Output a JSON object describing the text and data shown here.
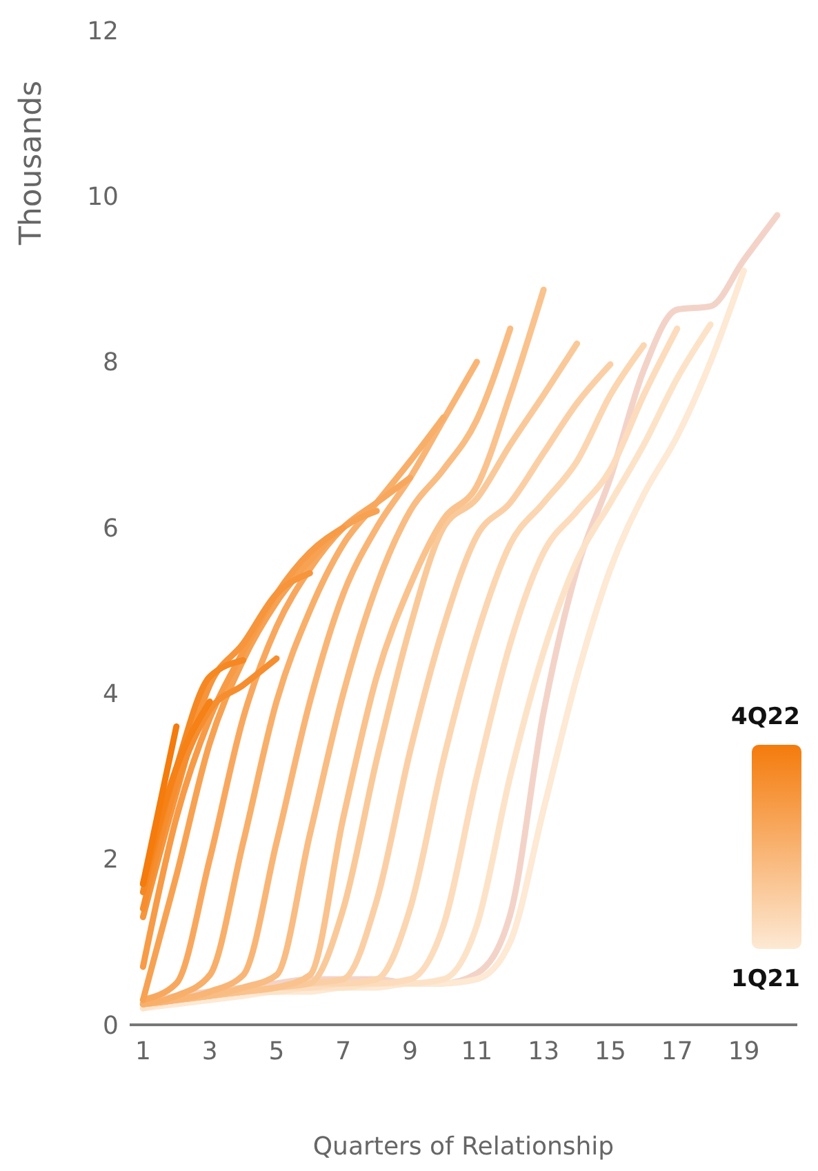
{
  "chart_data": {
    "type": "line",
    "xlabel": "Quarters of Relationship",
    "ylabel": "Thousands",
    "x": [
      1,
      2,
      3,
      4,
      5,
      6,
      7,
      8,
      9,
      10,
      11,
      12,
      13,
      14,
      15,
      16,
      17,
      18,
      19,
      20
    ],
    "xlim": [
      0.6,
      20.6
    ],
    "xticks": [
      1,
      3,
      5,
      7,
      9,
      11,
      13,
      15,
      17,
      19
    ],
    "ylim": [
      0,
      12
    ],
    "yticks": [
      0,
      2,
      4,
      6,
      8,
      10,
      12
    ],
    "grid": false,
    "line_style": "solid",
    "annotations": [
      "4Q22",
      "1Q21"
    ],
    "series": [
      {
        "color": "#f3d3c8",
        "values": [
          0.25,
          0.35,
          0.4,
          0.45,
          0.5,
          0.55,
          0.55,
          0.55,
          0.5,
          0.5,
          0.62,
          1.33,
          3.77,
          5.5,
          6.6,
          7.9,
          8.63,
          8.67,
          9.23,
          9.77
        ]
      },
      {
        "color": "#fde9d4",
        "values": [
          0.2,
          0.25,
          0.3,
          0.35,
          0.4,
          0.4,
          0.45,
          0.45,
          0.5,
          0.5,
          0.55,
          1.0,
          2.6,
          4.2,
          5.5,
          6.4,
          7.1,
          8.0,
          9.1,
          null
        ]
      },
      {
        "color": "#fce3c8",
        "values": [
          0.2,
          0.3,
          0.35,
          0.4,
          0.4,
          0.45,
          0.45,
          0.5,
          0.5,
          0.55,
          1.2,
          3.0,
          4.5,
          5.6,
          6.3,
          7.0,
          7.8,
          8.45,
          null,
          null
        ]
      },
      {
        "color": "#fcdcbc",
        "values": [
          0.25,
          0.3,
          0.35,
          0.4,
          0.45,
          0.45,
          0.5,
          0.5,
          0.55,
          1.2,
          3.0,
          4.6,
          5.7,
          6.2,
          6.7,
          7.6,
          8.4,
          null,
          null,
          null
        ]
      },
      {
        "color": "#fbd6b1",
        "values": [
          0.25,
          0.3,
          0.35,
          0.4,
          0.45,
          0.5,
          0.5,
          0.55,
          1.4,
          3.2,
          4.7,
          5.8,
          6.3,
          6.8,
          7.6,
          8.2,
          null,
          null,
          null,
          null
        ]
      },
      {
        "color": "#fbcfa5",
        "values": [
          0.25,
          0.3,
          0.35,
          0.4,
          0.45,
          0.5,
          0.55,
          1.5,
          3.3,
          4.8,
          5.9,
          6.3,
          6.9,
          7.5,
          7.97,
          null,
          null,
          null,
          null,
          null
        ]
      },
      {
        "color": "#fac999",
        "values": [
          0.25,
          0.3,
          0.35,
          0.4,
          0.45,
          0.5,
          1.4,
          3.2,
          4.8,
          6.0,
          6.35,
          7.0,
          7.6,
          8.22,
          null,
          null,
          null,
          null,
          null,
          null
        ]
      },
      {
        "color": "#fac28d",
        "values": [
          0.25,
          0.3,
          0.35,
          0.4,
          0.45,
          0.6,
          2.5,
          4.2,
          5.3,
          6.1,
          6.5,
          7.6,
          8.87,
          null,
          null,
          null,
          null,
          null,
          null,
          null
        ]
      },
      {
        "color": "#f9bc82",
        "values": [
          0.25,
          0.3,
          0.35,
          0.45,
          0.6,
          2.3,
          4.0,
          5.3,
          6.2,
          6.7,
          7.3,
          8.4,
          null,
          null,
          null,
          null,
          null,
          null,
          null,
          null
        ]
      },
      {
        "color": "#f9b576",
        "values": [
          0.25,
          0.3,
          0.4,
          0.6,
          2.2,
          3.9,
          5.2,
          6.0,
          6.6,
          7.3,
          8.0,
          null,
          null,
          null,
          null,
          null,
          null,
          null,
          null,
          null
        ]
      },
      {
        "color": "#f8af6a",
        "values": [
          0.25,
          0.35,
          0.6,
          2.2,
          3.9,
          5.0,
          5.8,
          6.3,
          6.8,
          7.33,
          null,
          null,
          null,
          null,
          null,
          null,
          null,
          null,
          null,
          null
        ]
      },
      {
        "color": "#f8a85e",
        "values": [
          0.3,
          0.5,
          2.0,
          3.7,
          4.8,
          5.5,
          6.0,
          6.3,
          6.6,
          null,
          null,
          null,
          null,
          null,
          null,
          null,
          null,
          null,
          null,
          null
        ]
      },
      {
        "color": "#f7a252",
        "values": [
          0.3,
          1.8,
          3.4,
          4.4,
          5.1,
          5.6,
          6.0,
          6.2,
          null,
          null,
          null,
          null,
          null,
          null,
          null,
          null,
          null,
          null,
          null,
          null
        ]
      },
      {
        "color": "#f79b47",
        "values": [
          0.7,
          2.5,
          3.7,
          4.5,
          5.2,
          5.7,
          6.0,
          null,
          null,
          null,
          null,
          null,
          null,
          null,
          null,
          null,
          null,
          null,
          null,
          null
        ]
      },
      {
        "color": "#f6953b",
        "values": [
          1.3,
          2.8,
          4.1,
          4.6,
          5.2,
          5.45,
          null,
          null,
          null,
          null,
          null,
          null,
          null,
          null,
          null,
          null,
          null,
          null,
          null,
          null
        ]
      },
      {
        "color": "#f68e2f",
        "values": [
          1.4,
          2.9,
          3.8,
          4.1,
          4.42,
          null,
          null,
          null,
          null,
          null,
          null,
          null,
          null,
          null,
          null,
          null,
          null,
          null,
          null,
          null
        ]
      },
      {
        "color": "#f58823",
        "values": [
          1.6,
          3.1,
          4.2,
          4.4,
          null,
          null,
          null,
          null,
          null,
          null,
          null,
          null,
          null,
          null,
          null,
          null,
          null,
          null,
          null,
          null
        ]
      },
      {
        "color": "#f58117",
        "values": [
          1.7,
          3.1,
          3.9,
          null,
          null,
          null,
          null,
          null,
          null,
          null,
          null,
          null,
          null,
          null,
          null,
          null,
          null,
          null,
          null,
          null
        ]
      },
      {
        "color": "#f47b0c",
        "values": [
          1.7,
          3.6,
          null,
          null,
          null,
          null,
          null,
          null,
          null,
          null,
          null,
          null,
          null,
          null,
          null,
          null,
          null,
          null,
          null,
          null
        ]
      }
    ]
  }
}
